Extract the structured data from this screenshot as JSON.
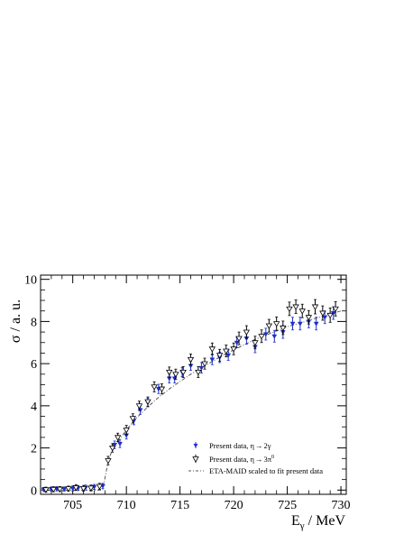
{
  "chart_data": {
    "type": "scatter",
    "xlabel": "E",
    "xlabel_sub": "γ",
    "xlabel_unit": " / MeV",
    "ylabel": "σ / a. u.",
    "xlim": [
      702,
      730.5
    ],
    "ylim": [
      -0.2,
      10.2
    ],
    "x_ticks": [
      705,
      710,
      715,
      720,
      725,
      730
    ],
    "y_ticks": [
      0,
      2,
      4,
      6,
      8,
      10
    ],
    "grid": false,
    "legend_position": "bottom-right",
    "series": [
      {
        "name": "Present data, η→2γ",
        "label_text": "Present data, η",
        "label_decay": "2γ",
        "color": "#1f2fc8",
        "marker": "triangle-down-filled",
        "points": [
          [
            702.3,
            0.03,
            0.1
          ],
          [
            703.0,
            0.05,
            0.1
          ],
          [
            703.5,
            0.06,
            0.1
          ],
          [
            704.2,
            0.05,
            0.1
          ],
          [
            705.0,
            0.08,
            0.12
          ],
          [
            705.5,
            0.1,
            0.12
          ],
          [
            706.2,
            0.12,
            0.12
          ],
          [
            707.0,
            0.15,
            0.12
          ],
          [
            707.8,
            0.2,
            0.12
          ],
          [
            708.9,
            2.15,
            0.18
          ],
          [
            709.4,
            2.2,
            0.18
          ],
          [
            710.0,
            2.6,
            0.18
          ],
          [
            710.7,
            3.3,
            0.2
          ],
          [
            711.3,
            3.8,
            0.2
          ],
          [
            712.0,
            4.15,
            0.2
          ],
          [
            713.0,
            4.8,
            0.22
          ],
          [
            714.0,
            5.3,
            0.22
          ],
          [
            714.5,
            5.3,
            0.22
          ],
          [
            715.2,
            5.6,
            0.22
          ],
          [
            716.0,
            5.9,
            0.22
          ],
          [
            717.0,
            5.8,
            0.25
          ],
          [
            718.0,
            6.2,
            0.25
          ],
          [
            718.7,
            6.3,
            0.25
          ],
          [
            719.5,
            6.4,
            0.25
          ],
          [
            720.3,
            7.0,
            0.25
          ],
          [
            721.2,
            7.2,
            0.28
          ],
          [
            722.0,
            6.8,
            0.28
          ],
          [
            723.0,
            7.4,
            0.28
          ],
          [
            723.8,
            7.3,
            0.28
          ],
          [
            724.6,
            7.5,
            0.3
          ],
          [
            725.5,
            7.9,
            0.3
          ],
          [
            726.2,
            7.9,
            0.3
          ],
          [
            727.0,
            8.0,
            0.3
          ],
          [
            727.7,
            7.9,
            0.3
          ],
          [
            728.5,
            8.2,
            0.3
          ],
          [
            729.3,
            8.4,
            0.3
          ]
        ]
      },
      {
        "name": "Present data, η→3π⁰",
        "label_text": "Present data, η",
        "label_decay": "3π",
        "label_decay_sup": "0",
        "color": "#000000",
        "marker": "triangle-down-open",
        "points": [
          [
            702.5,
            0.02,
            0.12
          ],
          [
            703.2,
            0.04,
            0.12
          ],
          [
            703.8,
            0.05,
            0.12
          ],
          [
            704.6,
            0.07,
            0.12
          ],
          [
            705.3,
            0.12,
            0.14
          ],
          [
            706.0,
            0.08,
            0.14
          ],
          [
            706.7,
            0.1,
            0.14
          ],
          [
            707.5,
            0.18,
            0.14
          ],
          [
            708.3,
            1.4,
            0.2
          ],
          [
            708.7,
            2.0,
            0.2
          ],
          [
            709.2,
            2.5,
            0.2
          ],
          [
            710.0,
            2.85,
            0.22
          ],
          [
            710.6,
            3.4,
            0.22
          ],
          [
            711.2,
            4.0,
            0.22
          ],
          [
            712.0,
            4.2,
            0.22
          ],
          [
            712.6,
            4.9,
            0.24
          ],
          [
            713.3,
            4.8,
            0.24
          ],
          [
            714.0,
            5.6,
            0.24
          ],
          [
            714.6,
            5.5,
            0.24
          ],
          [
            715.3,
            5.6,
            0.26
          ],
          [
            716.0,
            6.2,
            0.26
          ],
          [
            716.7,
            5.6,
            0.26
          ],
          [
            717.3,
            6.0,
            0.26
          ],
          [
            718.0,
            6.7,
            0.28
          ],
          [
            718.7,
            6.4,
            0.28
          ],
          [
            719.3,
            6.6,
            0.28
          ],
          [
            720.0,
            6.7,
            0.28
          ],
          [
            720.5,
            7.2,
            0.3
          ],
          [
            721.2,
            7.5,
            0.3
          ],
          [
            722.0,
            7.0,
            0.3
          ],
          [
            722.6,
            7.3,
            0.3
          ],
          [
            723.3,
            7.8,
            0.3
          ],
          [
            724.0,
            7.9,
            0.32
          ],
          [
            724.6,
            7.7,
            0.32
          ],
          [
            725.2,
            8.6,
            0.32
          ],
          [
            725.8,
            8.7,
            0.32
          ],
          [
            726.4,
            8.5,
            0.32
          ],
          [
            727.0,
            8.2,
            0.32
          ],
          [
            727.6,
            8.7,
            0.34
          ],
          [
            728.3,
            8.4,
            0.34
          ],
          [
            729.0,
            8.3,
            0.34
          ],
          [
            729.5,
            8.6,
            0.34
          ]
        ]
      },
      {
        "name": "ETA-MAID scaled to fit present data",
        "label_text": "ETA-MAID scaled to fit present data",
        "color": "#555555",
        "style": "dash-dot",
        "curve": [
          [
            702.0,
            0.0
          ],
          [
            707.8,
            0.0
          ],
          [
            708.05,
            0.7
          ],
          [
            708.3,
            1.35
          ],
          [
            708.6,
            1.8
          ],
          [
            709.0,
            2.15
          ],
          [
            710.0,
            2.85
          ],
          [
            711.0,
            3.45
          ],
          [
            712.0,
            3.95
          ],
          [
            713.0,
            4.4
          ],
          [
            714.0,
            4.8
          ],
          [
            715.0,
            5.15
          ],
          [
            716.0,
            5.5
          ],
          [
            717.0,
            5.8
          ],
          [
            718.0,
            6.1
          ],
          [
            719.0,
            6.4
          ],
          [
            720.0,
            6.65
          ],
          [
            721.0,
            6.9
          ],
          [
            722.0,
            7.15
          ],
          [
            723.0,
            7.35
          ],
          [
            724.0,
            7.55
          ],
          [
            725.0,
            7.75
          ],
          [
            726.0,
            7.9
          ],
          [
            727.0,
            8.05
          ],
          [
            728.0,
            8.2
          ],
          [
            729.0,
            8.35
          ],
          [
            730.0,
            8.5
          ]
        ]
      }
    ]
  }
}
